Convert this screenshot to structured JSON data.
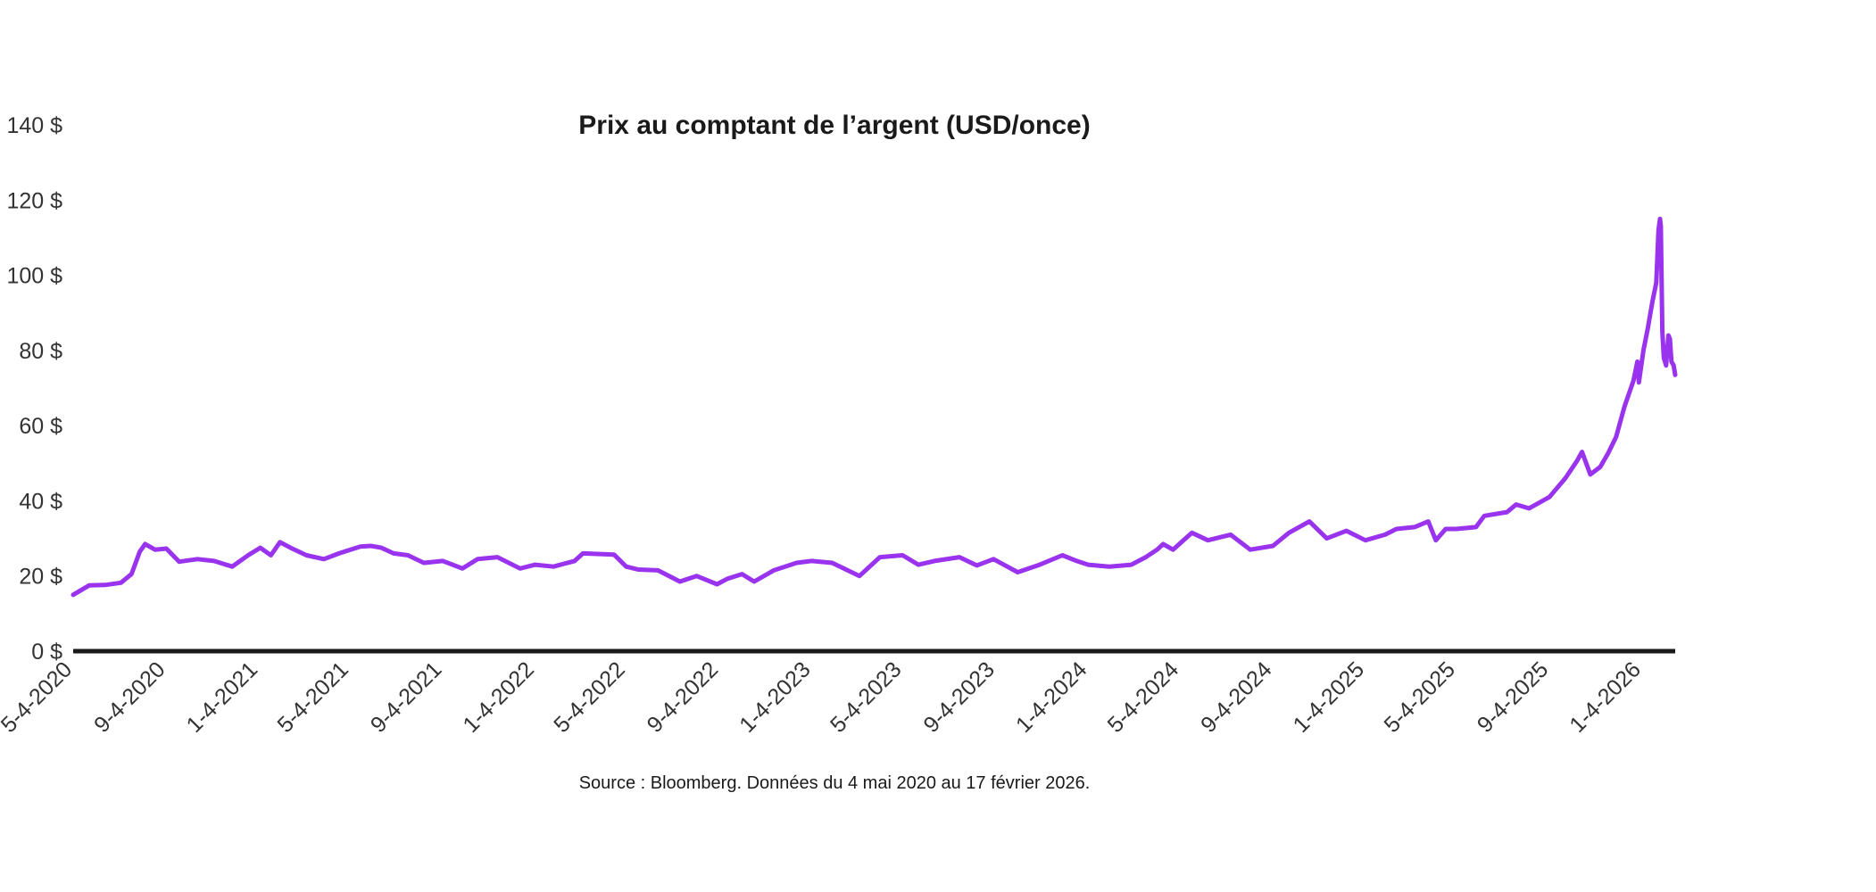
{
  "chart_data": {
    "type": "line",
    "title": "Prix au comptant de l’argent (USD/once)",
    "source": "Source : Bloomberg. Données du 4 mai 2020 au 17 février 2026.",
    "xlabel": "",
    "ylabel": "",
    "ylim": [
      0,
      140
    ],
    "xlim": [
      "2020-05-04",
      "2026-02-17"
    ],
    "y_ticks": [
      0,
      20,
      40,
      60,
      80,
      100,
      120,
      140
    ],
    "y_tick_labels": [
      "0 $",
      "20 $",
      "40 $",
      "60 $",
      "80 $",
      "100 $",
      "120 $",
      "140 $"
    ],
    "x_ticks": [
      "2020-05-04",
      "2020-09-04",
      "2021-01-04",
      "2021-05-04",
      "2021-09-04",
      "2022-01-04",
      "2022-05-04",
      "2022-09-04",
      "2023-01-04",
      "2023-05-04",
      "2023-09-04",
      "2024-01-04",
      "2024-05-04",
      "2024-09-04",
      "2025-01-04",
      "2025-05-04",
      "2025-09-04",
      "2026-01-04"
    ],
    "x_tick_labels": [
      "5-4-2020",
      "9-4-2020",
      "1-4-2021",
      "5-4-2021",
      "9-4-2021",
      "1-4-2022",
      "5-4-2022",
      "9-4-2022",
      "1-4-2023",
      "5-4-2023",
      "9-4-2023",
      "1-4-2024",
      "5-4-2024",
      "9-4-2024",
      "1-4-2025",
      "5-4-2025",
      "9-4-2025",
      "1-4-2026"
    ],
    "grid": false,
    "colors": {
      "line": "#9933ee",
      "axis": "#1a1a1a"
    },
    "series": [
      {
        "points": [
          [
            "2020-05-04",
            15.0
          ],
          [
            "2020-05-25",
            17.5
          ],
          [
            "2020-06-15",
            17.6
          ],
          [
            "2020-07-06",
            18.2
          ],
          [
            "2020-07-20",
            20.5
          ],
          [
            "2020-07-31",
            26.5
          ],
          [
            "2020-08-07",
            28.5
          ],
          [
            "2020-08-20",
            27.0
          ],
          [
            "2020-09-04",
            27.3
          ],
          [
            "2020-09-21",
            23.8
          ],
          [
            "2020-10-15",
            24.5
          ],
          [
            "2020-11-06",
            24.0
          ],
          [
            "2020-11-30",
            22.5
          ],
          [
            "2020-12-21",
            25.5
          ],
          [
            "2021-01-06",
            27.5
          ],
          [
            "2021-01-20",
            25.5
          ],
          [
            "2021-02-01",
            29.0
          ],
          [
            "2021-02-15",
            27.5
          ],
          [
            "2021-03-08",
            25.5
          ],
          [
            "2021-03-31",
            24.5
          ],
          [
            "2021-04-20",
            26.0
          ],
          [
            "2021-05-18",
            27.8
          ],
          [
            "2021-06-01",
            28.0
          ],
          [
            "2021-06-15",
            27.5
          ],
          [
            "2021-07-01",
            26.0
          ],
          [
            "2021-07-20",
            25.5
          ],
          [
            "2021-08-10",
            23.5
          ],
          [
            "2021-09-04",
            24.0
          ],
          [
            "2021-09-30",
            22.0
          ],
          [
            "2021-10-20",
            24.5
          ],
          [
            "2021-11-15",
            25.0
          ],
          [
            "2021-12-15",
            22.0
          ],
          [
            "2022-01-04",
            23.0
          ],
          [
            "2022-01-28",
            22.5
          ],
          [
            "2022-02-25",
            24.0
          ],
          [
            "2022-03-08",
            26.0
          ],
          [
            "2022-04-18",
            25.7
          ],
          [
            "2022-05-04",
            22.5
          ],
          [
            "2022-05-20",
            21.7
          ],
          [
            "2022-06-15",
            21.5
          ],
          [
            "2022-07-14",
            18.5
          ],
          [
            "2022-08-05",
            20.0
          ],
          [
            "2022-09-01",
            17.8
          ],
          [
            "2022-09-15",
            19.3
          ],
          [
            "2022-10-04",
            20.5
          ],
          [
            "2022-10-20",
            18.5
          ],
          [
            "2022-11-15",
            21.5
          ],
          [
            "2022-12-15",
            23.5
          ],
          [
            "2023-01-04",
            24.0
          ],
          [
            "2023-01-31",
            23.5
          ],
          [
            "2023-03-08",
            20.0
          ],
          [
            "2023-04-04",
            25.0
          ],
          [
            "2023-05-04",
            25.5
          ],
          [
            "2023-05-25",
            23.0
          ],
          [
            "2023-06-15",
            24.0
          ],
          [
            "2023-07-18",
            25.0
          ],
          [
            "2023-08-10",
            22.8
          ],
          [
            "2023-09-01",
            24.5
          ],
          [
            "2023-10-03",
            21.0
          ],
          [
            "2023-11-01",
            23.0
          ],
          [
            "2023-12-01",
            25.5
          ],
          [
            "2023-12-20",
            24.0
          ],
          [
            "2024-01-04",
            23.0
          ],
          [
            "2024-02-01",
            22.5
          ],
          [
            "2024-03-01",
            23.0
          ],
          [
            "2024-03-20",
            25.0
          ],
          [
            "2024-04-04",
            27.0
          ],
          [
            "2024-04-12",
            28.5
          ],
          [
            "2024-04-25",
            27.0
          ],
          [
            "2024-05-20",
            31.5
          ],
          [
            "2024-06-10",
            29.5
          ],
          [
            "2024-07-10",
            31.0
          ],
          [
            "2024-08-05",
            27.0
          ],
          [
            "2024-09-04",
            28.0
          ],
          [
            "2024-09-25",
            31.5
          ],
          [
            "2024-10-22",
            34.5
          ],
          [
            "2024-11-14",
            30.0
          ],
          [
            "2024-12-10",
            32.0
          ],
          [
            "2025-01-04",
            29.5
          ],
          [
            "2025-01-30",
            31.0
          ],
          [
            "2025-02-14",
            32.5
          ],
          [
            "2025-03-10",
            33.0
          ],
          [
            "2025-03-28",
            34.5
          ],
          [
            "2025-04-07",
            29.5
          ],
          [
            "2025-04-20",
            32.5
          ],
          [
            "2025-05-04",
            32.5
          ],
          [
            "2025-05-30",
            33.0
          ],
          [
            "2025-06-10",
            36.0
          ],
          [
            "2025-07-10",
            37.0
          ],
          [
            "2025-07-22",
            39.0
          ],
          [
            "2025-08-08",
            38.0
          ],
          [
            "2025-09-04",
            41.0
          ],
          [
            "2025-09-25",
            46.0
          ],
          [
            "2025-10-10",
            50.5
          ],
          [
            "2025-10-17",
            53.0
          ],
          [
            "2025-10-28",
            47.0
          ],
          [
            "2025-11-10",
            49.0
          ],
          [
            "2025-11-20",
            52.5
          ],
          [
            "2025-12-01",
            57.0
          ],
          [
            "2025-12-12",
            65.0
          ],
          [
            "2025-12-24",
            72.0
          ],
          [
            "2025-12-29",
            77.0
          ],
          [
            "2025-12-31",
            71.5
          ],
          [
            "2026-01-06",
            80.0
          ],
          [
            "2026-01-12",
            86.0
          ],
          [
            "2026-01-18",
            93.0
          ],
          [
            "2026-01-23",
            98.0
          ],
          [
            "2026-01-26",
            112.0
          ],
          [
            "2026-01-28",
            115.0
          ],
          [
            "2026-01-29",
            113.0
          ],
          [
            "2026-01-31",
            85.0
          ],
          [
            "2026-02-02",
            78.0
          ],
          [
            "2026-02-05",
            76.0
          ],
          [
            "2026-02-08",
            84.0
          ],
          [
            "2026-02-10",
            83.0
          ],
          [
            "2026-02-12",
            77.0
          ],
          [
            "2026-02-15",
            76.0
          ],
          [
            "2026-02-17",
            73.5
          ]
        ]
      }
    ]
  }
}
